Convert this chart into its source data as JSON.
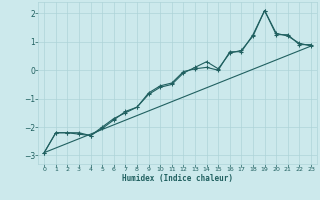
{
  "xlabel": "Humidex (Indice chaleur)",
  "xlim": [
    -0.5,
    23.5
  ],
  "ylim": [
    -3.3,
    2.4
  ],
  "bg_color": "#cce9ec",
  "grid_color": "#aed4d8",
  "line_color": "#206060",
  "xticks": [
    0,
    1,
    2,
    3,
    4,
    5,
    6,
    7,
    8,
    9,
    10,
    11,
    12,
    13,
    14,
    15,
    16,
    17,
    18,
    19,
    20,
    21,
    22,
    23
  ],
  "yticks": [
    -3,
    -2,
    -1,
    0,
    1,
    2
  ],
  "series1_x": [
    0,
    1,
    2,
    3,
    4,
    5,
    6,
    7,
    8,
    9,
    10,
    11,
    12,
    13,
    14,
    15,
    16,
    17,
    18,
    19,
    20,
    21,
    22,
    23
  ],
  "series1_y": [
    -2.9,
    -2.2,
    -2.2,
    -2.2,
    -2.3,
    -2.0,
    -1.7,
    -1.5,
    -1.3,
    -0.8,
    -0.55,
    -0.45,
    -0.05,
    0.05,
    0.1,
    0.0,
    0.65,
    0.65,
    1.25,
    2.1,
    1.25,
    1.25,
    0.9,
    0.9
  ],
  "series2_x": [
    0,
    1,
    2,
    3,
    4,
    5,
    6,
    7,
    8,
    9,
    10,
    11,
    12,
    13,
    14,
    15,
    16,
    17,
    18,
    19,
    20,
    21,
    22,
    23
  ],
  "series2_y": [
    -2.9,
    -2.2,
    -2.2,
    -2.25,
    -2.3,
    -2.05,
    -1.75,
    -1.45,
    -1.3,
    -0.85,
    -0.6,
    -0.5,
    -0.1,
    0.1,
    0.3,
    0.05,
    0.6,
    0.7,
    1.2,
    2.1,
    1.3,
    1.2,
    0.95,
    0.85
  ],
  "series3_x": [
    0,
    23
  ],
  "series3_y": [
    -2.9,
    0.85
  ]
}
